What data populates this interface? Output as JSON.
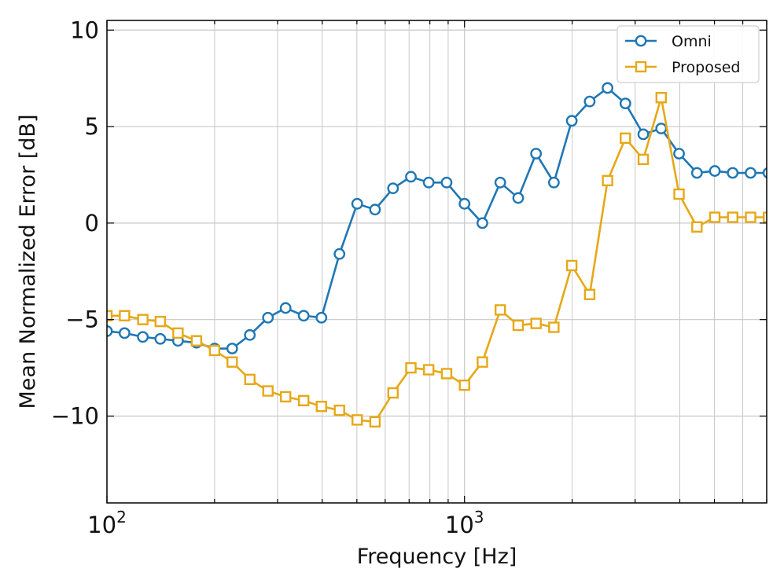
{
  "chart_data": {
    "type": "line",
    "title": "",
    "xlabel": "Frequency [Hz]",
    "ylabel": "Mean Normalized Error [dB]",
    "xscale": "log",
    "xlim": [
      100,
      7000
    ],
    "ylim": [
      -14.5,
      10.5
    ],
    "grid": true,
    "legend_position": "top-right",
    "x_tick_labels": [
      {
        "value": 100,
        "base": "10",
        "exp": "2"
      },
      {
        "value": 1000,
        "base": "10",
        "exp": "3"
      }
    ],
    "y_tick_labels": [
      {
        "value": 10,
        "label": "10"
      },
      {
        "value": 5,
        "label": "5"
      },
      {
        "value": 0,
        "label": "0"
      },
      {
        "value": -5,
        "label": "−5"
      },
      {
        "value": -10,
        "label": "−10"
      }
    ],
    "series": [
      {
        "name": "Omni",
        "color": "#1f77b4",
        "marker": "circle",
        "x": [
          100,
          112,
          126,
          141,
          158,
          178,
          200,
          224,
          251,
          282,
          316,
          355,
          398,
          447,
          501,
          562,
          631,
          708,
          794,
          891,
          1000,
          1122,
          1259,
          1413,
          1585,
          1778,
          1995,
          2239,
          2512,
          2818,
          3162,
          3548,
          3981,
          4467,
          5012,
          5623,
          6310,
          7079
        ],
        "y": [
          -5.6,
          -5.7,
          -5.9,
          -6.0,
          -6.1,
          -6.2,
          -6.5,
          -6.5,
          -5.8,
          -4.9,
          -4.4,
          -4.8,
          -4.9,
          -1.6,
          1.0,
          0.7,
          1.8,
          2.4,
          2.1,
          2.1,
          1.0,
          0.0,
          2.1,
          1.3,
          3.6,
          2.1,
          5.3,
          6.3,
          7.0,
          6.2,
          4.6,
          4.9,
          3.6,
          2.6,
          2.7,
          2.6,
          2.6,
          2.6
        ]
      },
      {
        "name": "Proposed",
        "color": "#e6a817",
        "marker": "square",
        "x": [
          100,
          112,
          126,
          141,
          158,
          178,
          200,
          224,
          251,
          282,
          316,
          355,
          398,
          447,
          501,
          562,
          631,
          708,
          794,
          891,
          1000,
          1122,
          1259,
          1413,
          1585,
          1778,
          1995,
          2239,
          2512,
          2818,
          3162,
          3548,
          3981,
          4467,
          5012,
          5623,
          6310,
          7079
        ],
        "y": [
          -4.8,
          -4.8,
          -5.0,
          -5.1,
          -5.7,
          -6.1,
          -6.6,
          -7.2,
          -8.1,
          -8.7,
          -9.0,
          -9.2,
          -9.5,
          -9.7,
          -10.2,
          -10.3,
          -8.8,
          -7.5,
          -7.6,
          -7.8,
          -8.4,
          -7.2,
          -4.5,
          -5.3,
          -5.2,
          -5.4,
          -2.2,
          -3.7,
          2.2,
          4.4,
          3.3,
          6.5,
          1.5,
          -0.2,
          0.3,
          0.3,
          0.3,
          0.3
        ]
      }
    ]
  }
}
